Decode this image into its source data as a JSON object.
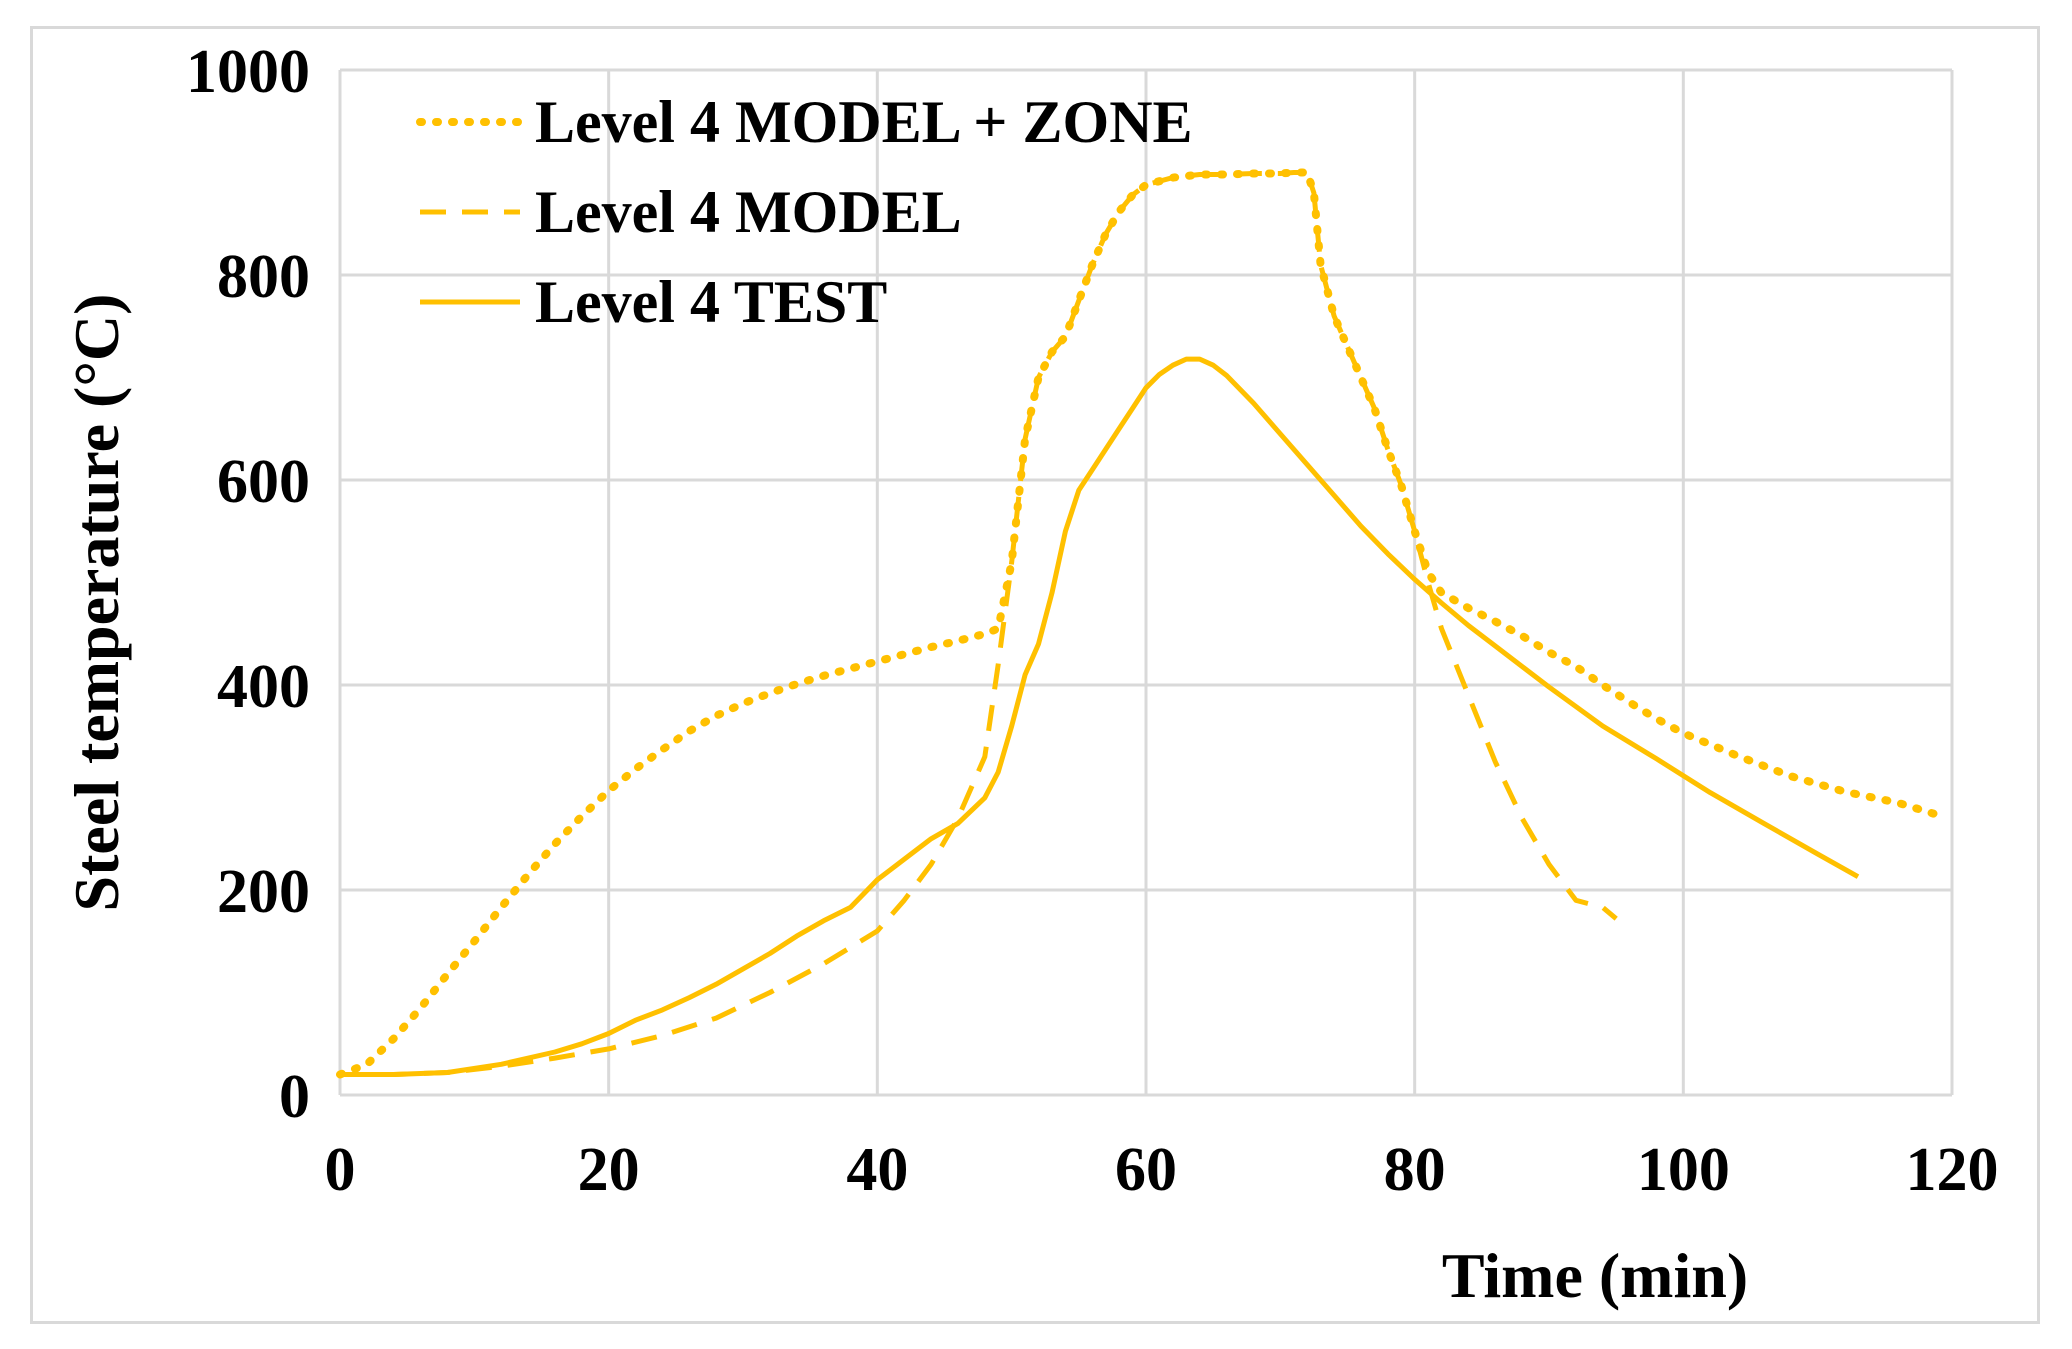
{
  "chart_data": {
    "type": "line",
    "title": "",
    "xlabel": "Time (min)",
    "ylabel": "Steel temperature (°C)",
    "xlim": [
      0,
      120
    ],
    "ylim": [
      0,
      1000
    ],
    "xticks": [
      0,
      20,
      40,
      60,
      80,
      100,
      120
    ],
    "yticks": [
      0,
      200,
      400,
      600,
      800,
      1000
    ],
    "grid": true,
    "legend_position": "top-left",
    "series": [
      {
        "name": "Level 4 MODEL + ZONE",
        "style": "dotted",
        "color": "#FFC000",
        "x": [
          0,
          2,
          4,
          6,
          8,
          10,
          12,
          14,
          16,
          18,
          20,
          22,
          24,
          26,
          28,
          30,
          32,
          34,
          36,
          38,
          40,
          42,
          44,
          46,
          48,
          49,
          50,
          51,
          52,
          53,
          54,
          55,
          56,
          57,
          58,
          59,
          60,
          62,
          64,
          66,
          68,
          70,
          71,
          72,
          72.5,
          73,
          74,
          75,
          76,
          77,
          78,
          79,
          80,
          81,
          82,
          84,
          86,
          88,
          90,
          92,
          94,
          96,
          98,
          100,
          104,
          108,
          112,
          116,
          119
        ],
        "y": [
          20,
          30,
          55,
          85,
          118,
          150,
          183,
          215,
          245,
          272,
          297,
          318,
          337,
          355,
          370,
          382,
          392,
          401,
          409,
          416,
          423,
          430,
          437,
          443,
          450,
          455,
          520,
          640,
          700,
          725,
          740,
          775,
          810,
          840,
          862,
          878,
          888,
          895,
          898,
          898,
          899,
          899,
          900,
          900,
          880,
          810,
          760,
          730,
          700,
          670,
          630,
          595,
          550,
          510,
          490,
          475,
          462,
          448,
          432,
          418,
          400,
          383,
          367,
          353,
          331,
          311,
          296,
          285,
          273
        ]
      },
      {
        "name": "Level 4 MODEL",
        "style": "dashed",
        "color": "#FFC000",
        "x": [
          0,
          4,
          8,
          12,
          16,
          20,
          24,
          28,
          32,
          36,
          40,
          42,
          44,
          46,
          48,
          49,
          50,
          51,
          52,
          53,
          54,
          55,
          56,
          57,
          58,
          59,
          60,
          62,
          64,
          66,
          68,
          70,
          71,
          72,
          72.5,
          73,
          74,
          75,
          76,
          77,
          78,
          79,
          80,
          81,
          82,
          84,
          86,
          88,
          90,
          92,
          94,
          95
        ],
        "y": [
          20,
          20,
          22,
          28,
          36,
          45,
          58,
          75,
          100,
          128,
          160,
          190,
          225,
          270,
          330,
          420,
          520,
          640,
          700,
          725,
          740,
          775,
          810,
          840,
          862,
          878,
          888,
          895,
          898,
          898,
          899,
          899,
          900,
          900,
          880,
          810,
          760,
          730,
          700,
          670,
          630,
          595,
          550,
          500,
          455,
          390,
          325,
          270,
          225,
          190,
          183,
          172
        ]
      },
      {
        "name": "Level 4 TEST",
        "style": "solid",
        "color": "#FFC000",
        "x": [
          0,
          4,
          8,
          12,
          16,
          18,
          20,
          22,
          24,
          26,
          28,
          30,
          32,
          34,
          36,
          38,
          40,
          42,
          44,
          46,
          48,
          49,
          50,
          51,
          52,
          53,
          54,
          55,
          56,
          57,
          58,
          59,
          60,
          61,
          62,
          63,
          64,
          65,
          66,
          68,
          70,
          72,
          74,
          76,
          78,
          80,
          82,
          84,
          86,
          88,
          90,
          94,
          98,
          102,
          106,
          110,
          113
        ],
        "y": [
          20,
          20,
          22,
          30,
          42,
          50,
          60,
          73,
          83,
          95,
          108,
          123,
          138,
          155,
          170,
          183,
          210,
          230,
          250,
          265,
          290,
          315,
          360,
          410,
          440,
          490,
          550,
          590,
          610,
          630,
          650,
          670,
          690,
          703,
          712,
          718,
          718,
          712,
          702,
          675,
          645,
          615,
          585,
          555,
          528,
          503,
          480,
          458,
          438,
          418,
          398,
          360,
          328,
          295,
          265,
          235,
          213
        ]
      }
    ]
  }
}
